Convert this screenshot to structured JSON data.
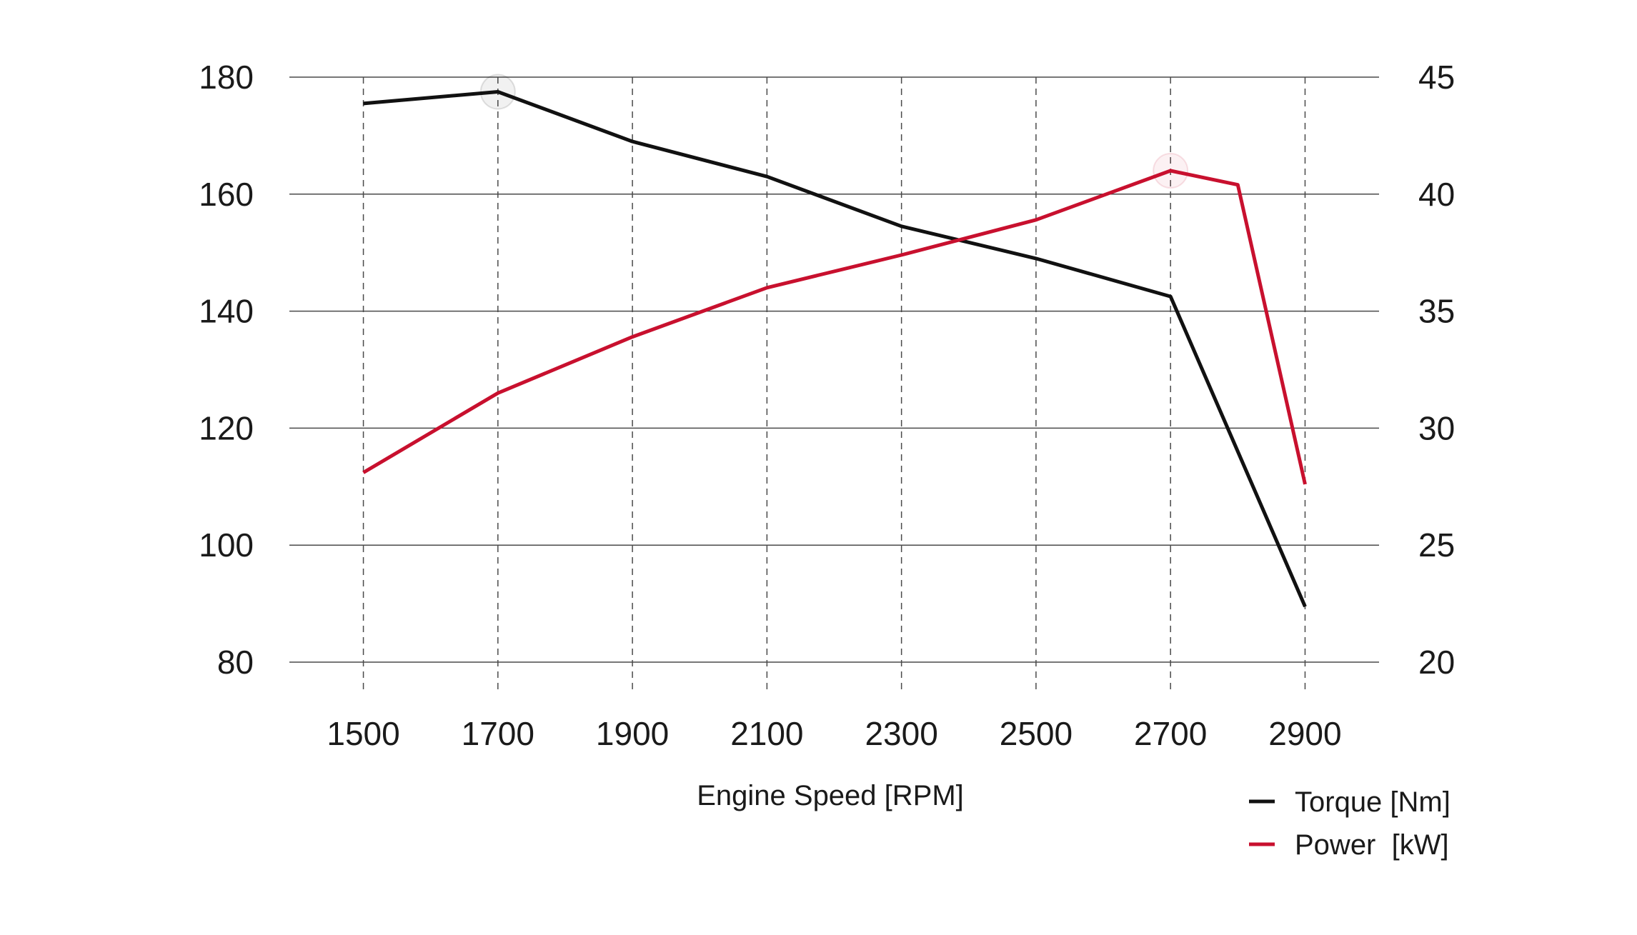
{
  "chart_data": {
    "type": "line",
    "x": [
      1500,
      1700,
      1900,
      2100,
      2300,
      2500,
      2700,
      2800,
      2900
    ],
    "x_ticks": [
      1500,
      1700,
      1900,
      2100,
      2300,
      2500,
      2700,
      2900
    ],
    "xlabel": "Engine Speed [RPM]",
    "xlim": [
      1390,
      3010
    ],
    "y_left": {
      "lim": [
        80,
        180
      ],
      "ticks": [
        80,
        100,
        120,
        140,
        160,
        180
      ]
    },
    "y_right": {
      "lim": [
        20,
        45
      ],
      "ticks": [
        20,
        25,
        30,
        35,
        40,
        45
      ]
    },
    "series": [
      {
        "name": "Torque [Nm]",
        "axis": "left",
        "color": "#111111",
        "x": [
          1500,
          1700,
          1900,
          2100,
          2300,
          2500,
          2700,
          2900
        ],
        "values": [
          175.5,
          177.5,
          169,
          163,
          154.5,
          149,
          142.5,
          89.5
        ]
      },
      {
        "name": "Power  [kW]",
        "axis": "right",
        "color": "#c8102e",
        "x": [
          1500,
          1700,
          1900,
          2100,
          2300,
          2500,
          2700,
          2800,
          2900
        ],
        "values": [
          28.1,
          31.5,
          33.9,
          36.0,
          37.4,
          38.9,
          41.0,
          40.4,
          27.6
        ]
      }
    ],
    "highlight_markers": [
      {
        "series": "Torque [Nm]",
        "x": 1700,
        "y": 177.5
      },
      {
        "series": "Power  [kW]",
        "x": 2700,
        "y": 41.0
      }
    ],
    "grid": {
      "horizontal": "solid",
      "vertical": "dashed"
    },
    "legend_position": "bottom-right"
  }
}
